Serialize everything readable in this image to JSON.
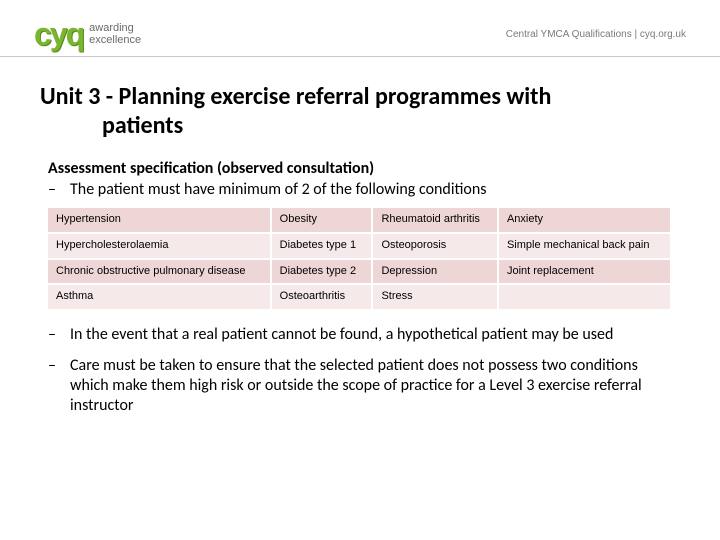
{
  "header": {
    "logo_text": "cyq",
    "tagline_line1": "awarding",
    "tagline_line2": "excellence",
    "right_text": "Central YMCA Qualifications  |  cyq.org.uk"
  },
  "title_line1": "Unit 3 - Planning exercise referral programmes with",
  "title_line2": "patients",
  "subheading": "Assessment specification (observed consultation)",
  "bullet1": "The patient must have minimum of 2 of the following conditions",
  "bullet2": "In the event that a real patient cannot be found, a hypothetical patient may be used",
  "bullet3": "Care must be taken to ensure that the selected patient does not possess two conditions which make them high risk or outside the scope of practice for a Level 3 exercise referral instructor",
  "table": {
    "columns": 4,
    "row_colors": [
      "#efd6d6",
      "#f6e9e9",
      "#efd6d6",
      "#f6e9e9"
    ],
    "cell_fontsize": 11,
    "rows": [
      [
        "Hypertension",
        "Obesity",
        "Rheumatoid arthritis",
        "Anxiety"
      ],
      [
        "Hypercholesterolaemia",
        "Diabetes type 1",
        "Osteoporosis",
        "Simple mechanical back pain"
      ],
      [
        "Chronic obstructive pulmonary disease",
        "Diabetes type 2",
        "Depression",
        "Joint replacement"
      ],
      [
        "Asthma",
        "Osteoarthritis",
        "Stress",
        ""
      ]
    ]
  },
  "colors": {
    "logo_green": "#79b530",
    "text": "#000000",
    "header_rule": "#c9c9c9",
    "table_row_dark": "#efd6d6",
    "table_row_light": "#f6e9e9",
    "background": "#ffffff"
  },
  "dash": "–"
}
